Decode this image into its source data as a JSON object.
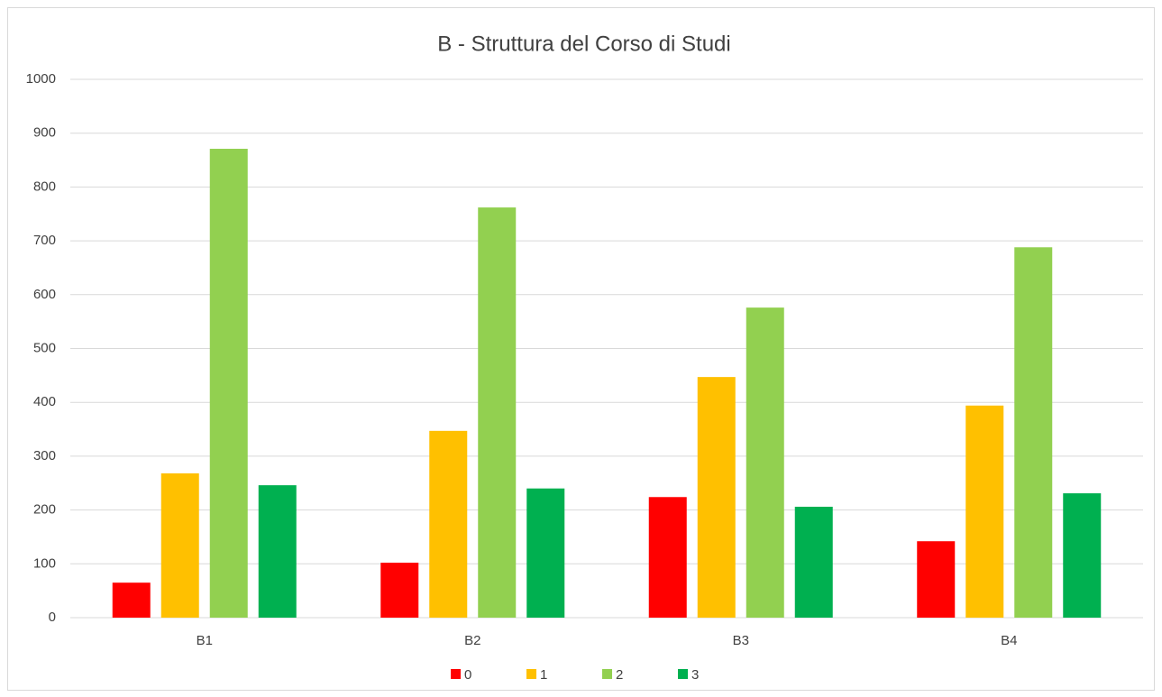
{
  "chart_data": {
    "type": "bar",
    "title": "B - Struttura del Corso di Studi",
    "categories": [
      "B1",
      "B2",
      "B3",
      "B4"
    ],
    "series": [
      {
        "name": "0",
        "color": "#ff0000",
        "values": [
          65,
          102,
          224,
          142
        ]
      },
      {
        "name": "1",
        "color": "#ffc000",
        "values": [
          268,
          347,
          447,
          394
        ]
      },
      {
        "name": "2",
        "color": "#92d050",
        "values": [
          871,
          762,
          576,
          688
        ]
      },
      {
        "name": "3",
        "color": "#00b050",
        "values": [
          246,
          240,
          206,
          231
        ]
      }
    ],
    "ylim": [
      0,
      1000
    ],
    "yticks": [
      0,
      100,
      200,
      300,
      400,
      500,
      600,
      700,
      800,
      900,
      1000
    ],
    "grid": true,
    "legend": "bottom"
  }
}
